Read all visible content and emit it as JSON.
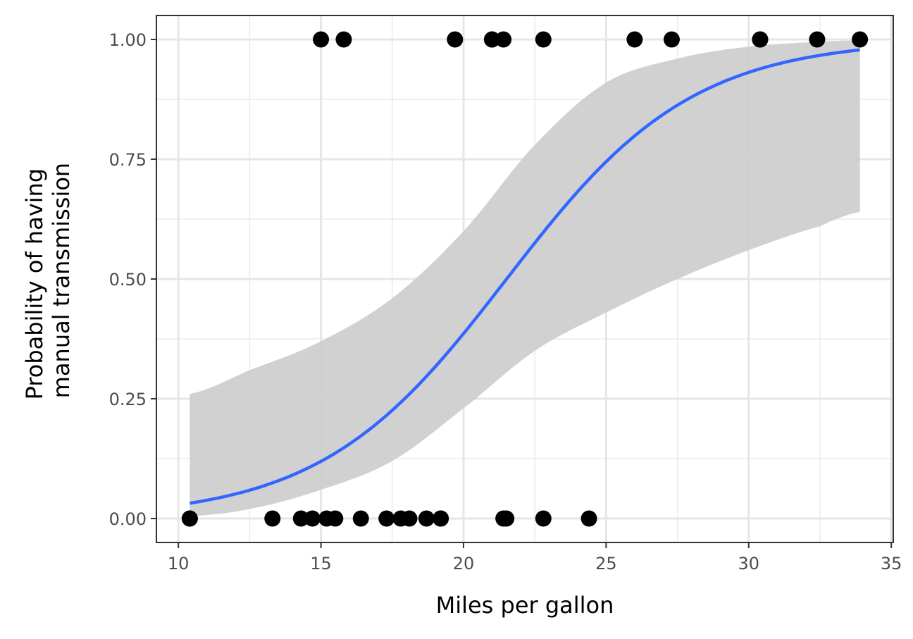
{
  "chart_data": {
    "type": "scatter",
    "xlabel": "Miles per gallon",
    "ylabel_lines": [
      "Probability of having",
      "manual transmission"
    ],
    "xlim": [
      9.23,
      35.07
    ],
    "ylim": [
      -0.05,
      1.05
    ],
    "x_ticks": [
      10,
      15,
      20,
      25,
      30,
      35
    ],
    "x_tick_labels": [
      "10",
      "15",
      "20",
      "25",
      "30",
      "35"
    ],
    "y_ticks": [
      0,
      0.25,
      0.5,
      0.75,
      1.0
    ],
    "y_tick_labels": [
      "0.00",
      "0.25",
      "0.50",
      "0.75",
      "1.00"
    ],
    "grid": true,
    "legend": "none",
    "points": {
      "x": [
        10.4,
        10.4,
        13.3,
        14.3,
        14.7,
        15.2,
        15.5,
        16.4,
        17.3,
        17.8,
        18.1,
        18.7,
        19.2,
        19.2,
        21.4,
        21.5,
        22.8,
        24.4,
        15.0,
        15.8,
        19.7,
        21.0,
        21.0,
        21.4,
        22.8,
        26.0,
        27.3,
        30.4,
        30.4,
        32.4,
        33.9
      ],
      "y": [
        0,
        0,
        0,
        0,
        0,
        0,
        0,
        0,
        0,
        0,
        0,
        0,
        0,
        0,
        0,
        0,
        0,
        0,
        1,
        1,
        1,
        1,
        1,
        1,
        1,
        1,
        1,
        1,
        1,
        1,
        1
      ],
      "color": "#000000"
    },
    "fit": {
      "type": "logistic",
      "intercept": -6.604,
      "slope": 0.307,
      "x_range": [
        10.4,
        33.9
      ],
      "color": "#3366FF"
    },
    "confidence_band": {
      "x": [
        10.4,
        12.5,
        15.0,
        17.5,
        20.0,
        22.5,
        25.0,
        27.5,
        30.0,
        32.5,
        33.9
      ],
      "lower": [
        0.005,
        0.02,
        0.06,
        0.12,
        0.23,
        0.35,
        0.43,
        0.5,
        0.56,
        0.61,
        0.64
      ],
      "upper": [
        0.26,
        0.31,
        0.37,
        0.46,
        0.6,
        0.78,
        0.91,
        0.96,
        0.985,
        0.995,
        0.998
      ],
      "color": "#cccccc"
    }
  }
}
